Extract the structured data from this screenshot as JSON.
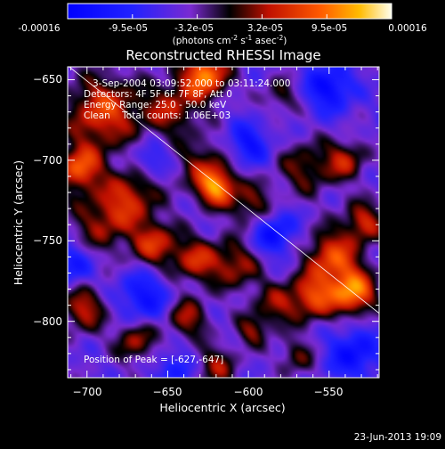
{
  "colorbar": {
    "tick_labels": [
      "-0.00016",
      "-9.5e-05",
      "-3.2e-05",
      "3.2e-05",
      "9.5e-05",
      "0.00016"
    ],
    "unit_label": "(photons cm",
    "unit_exp1": "-2",
    "unit_mid": " s",
    "unit_exp2": "-1",
    "unit_mid2": " asec",
    "unit_exp3": "-2",
    "unit_close": ")",
    "min": -0.00016,
    "max": 0.00016
  },
  "chart_data": {
    "type": "heatmap",
    "title": "Reconstructed RHESSI Image",
    "xlabel": "Heliocentric X (arcsec)",
    "ylabel": "Heliocentric Y (arcsec)",
    "xlim": [
      -712,
      -519
    ],
    "ylim": [
      -835,
      -642
    ],
    "x_ticks": [
      -700,
      -650,
      -600,
      -550
    ],
    "y_ticks": [
      -650,
      -700,
      -750,
      -800
    ],
    "x_tick_labels": [
      "−700",
      "−650",
      "−600",
      "−550"
    ],
    "y_tick_labels": [
      "−650",
      "−700",
      "−750",
      "−800"
    ],
    "annotations": [
      "3-Sep-2004 03:09:52.000 to 03:11:24.000",
      "Detectors: 4F 5F 6F 7F 8F, Att 0",
      "Energy Range: 25.0 - 50.0 keV",
      "Clean    Total counts: 1.06E+03"
    ],
    "peak_label": "Position of Peak = [-627,-647]",
    "limb_line": [
      [
        -711,
        -642
      ],
      [
        -519,
        -795
      ]
    ],
    "blobs": [
      {
        "x": -627,
        "y": -647,
        "s": 10,
        "a": 1.0
      },
      {
        "x": -690,
        "y": -670,
        "s": 16,
        "a": 0.75
      },
      {
        "x": -705,
        "y": -705,
        "s": 10,
        "a": 0.8
      },
      {
        "x": -648,
        "y": -668,
        "s": 12,
        "a": 0.55
      },
      {
        "x": -620,
        "y": -717,
        "s": 8,
        "a": 0.9
      },
      {
        "x": -628,
        "y": -703,
        "s": 12,
        "a": 0.45
      },
      {
        "x": -672,
        "y": -722,
        "s": 12,
        "a": 0.55
      },
      {
        "x": -690,
        "y": -738,
        "s": 14,
        "a": 0.5
      },
      {
        "x": -658,
        "y": -752,
        "s": 10,
        "a": 0.65
      },
      {
        "x": -633,
        "y": -762,
        "s": 10,
        "a": 0.6
      },
      {
        "x": -608,
        "y": -765,
        "s": 11,
        "a": 0.55
      },
      {
        "x": -598,
        "y": -728,
        "s": 10,
        "a": 0.5
      },
      {
        "x": -565,
        "y": -705,
        "s": 12,
        "a": 0.45
      },
      {
        "x": -540,
        "y": -700,
        "s": 9,
        "a": 0.55
      },
      {
        "x": -548,
        "y": -760,
        "s": 12,
        "a": 0.75
      },
      {
        "x": -535,
        "y": -782,
        "s": 10,
        "a": 0.95
      },
      {
        "x": -560,
        "y": -785,
        "s": 10,
        "a": 0.7
      },
      {
        "x": -528,
        "y": -738,
        "s": 9,
        "a": 0.6
      },
      {
        "x": -583,
        "y": -790,
        "s": 10,
        "a": 0.45
      },
      {
        "x": -638,
        "y": -798,
        "s": 9,
        "a": 0.55
      },
      {
        "x": -620,
        "y": -828,
        "s": 9,
        "a": 0.5
      },
      {
        "x": -670,
        "y": -812,
        "s": 9,
        "a": 0.55
      },
      {
        "x": -702,
        "y": -792,
        "s": 10,
        "a": 0.6
      },
      {
        "x": -598,
        "y": -806,
        "s": 7,
        "a": 0.45
      },
      {
        "x": -570,
        "y": -822,
        "s": 8,
        "a": 0.4
      },
      {
        "x": -580,
        "y": -660,
        "s": 8,
        "a": 0.35
      },
      {
        "x": -600,
        "y": -690,
        "s": 9,
        "a": -0.5
      },
      {
        "x": -585,
        "y": -745,
        "s": 10,
        "a": -0.55
      },
      {
        "x": -665,
        "y": -785,
        "s": 11,
        "a": -0.5
      },
      {
        "x": -710,
        "y": -765,
        "s": 9,
        "a": -0.45
      },
      {
        "x": -550,
        "y": -655,
        "s": 10,
        "a": -0.6
      },
      {
        "x": -535,
        "y": -820,
        "s": 11,
        "a": -0.55
      },
      {
        "x": -645,
        "y": -830,
        "s": 8,
        "a": -0.4
      },
      {
        "x": -660,
        "y": -700,
        "s": 8,
        "a": -0.35
      }
    ]
  },
  "footer": {
    "timestamp": "23-Jun-2013 19:09"
  }
}
